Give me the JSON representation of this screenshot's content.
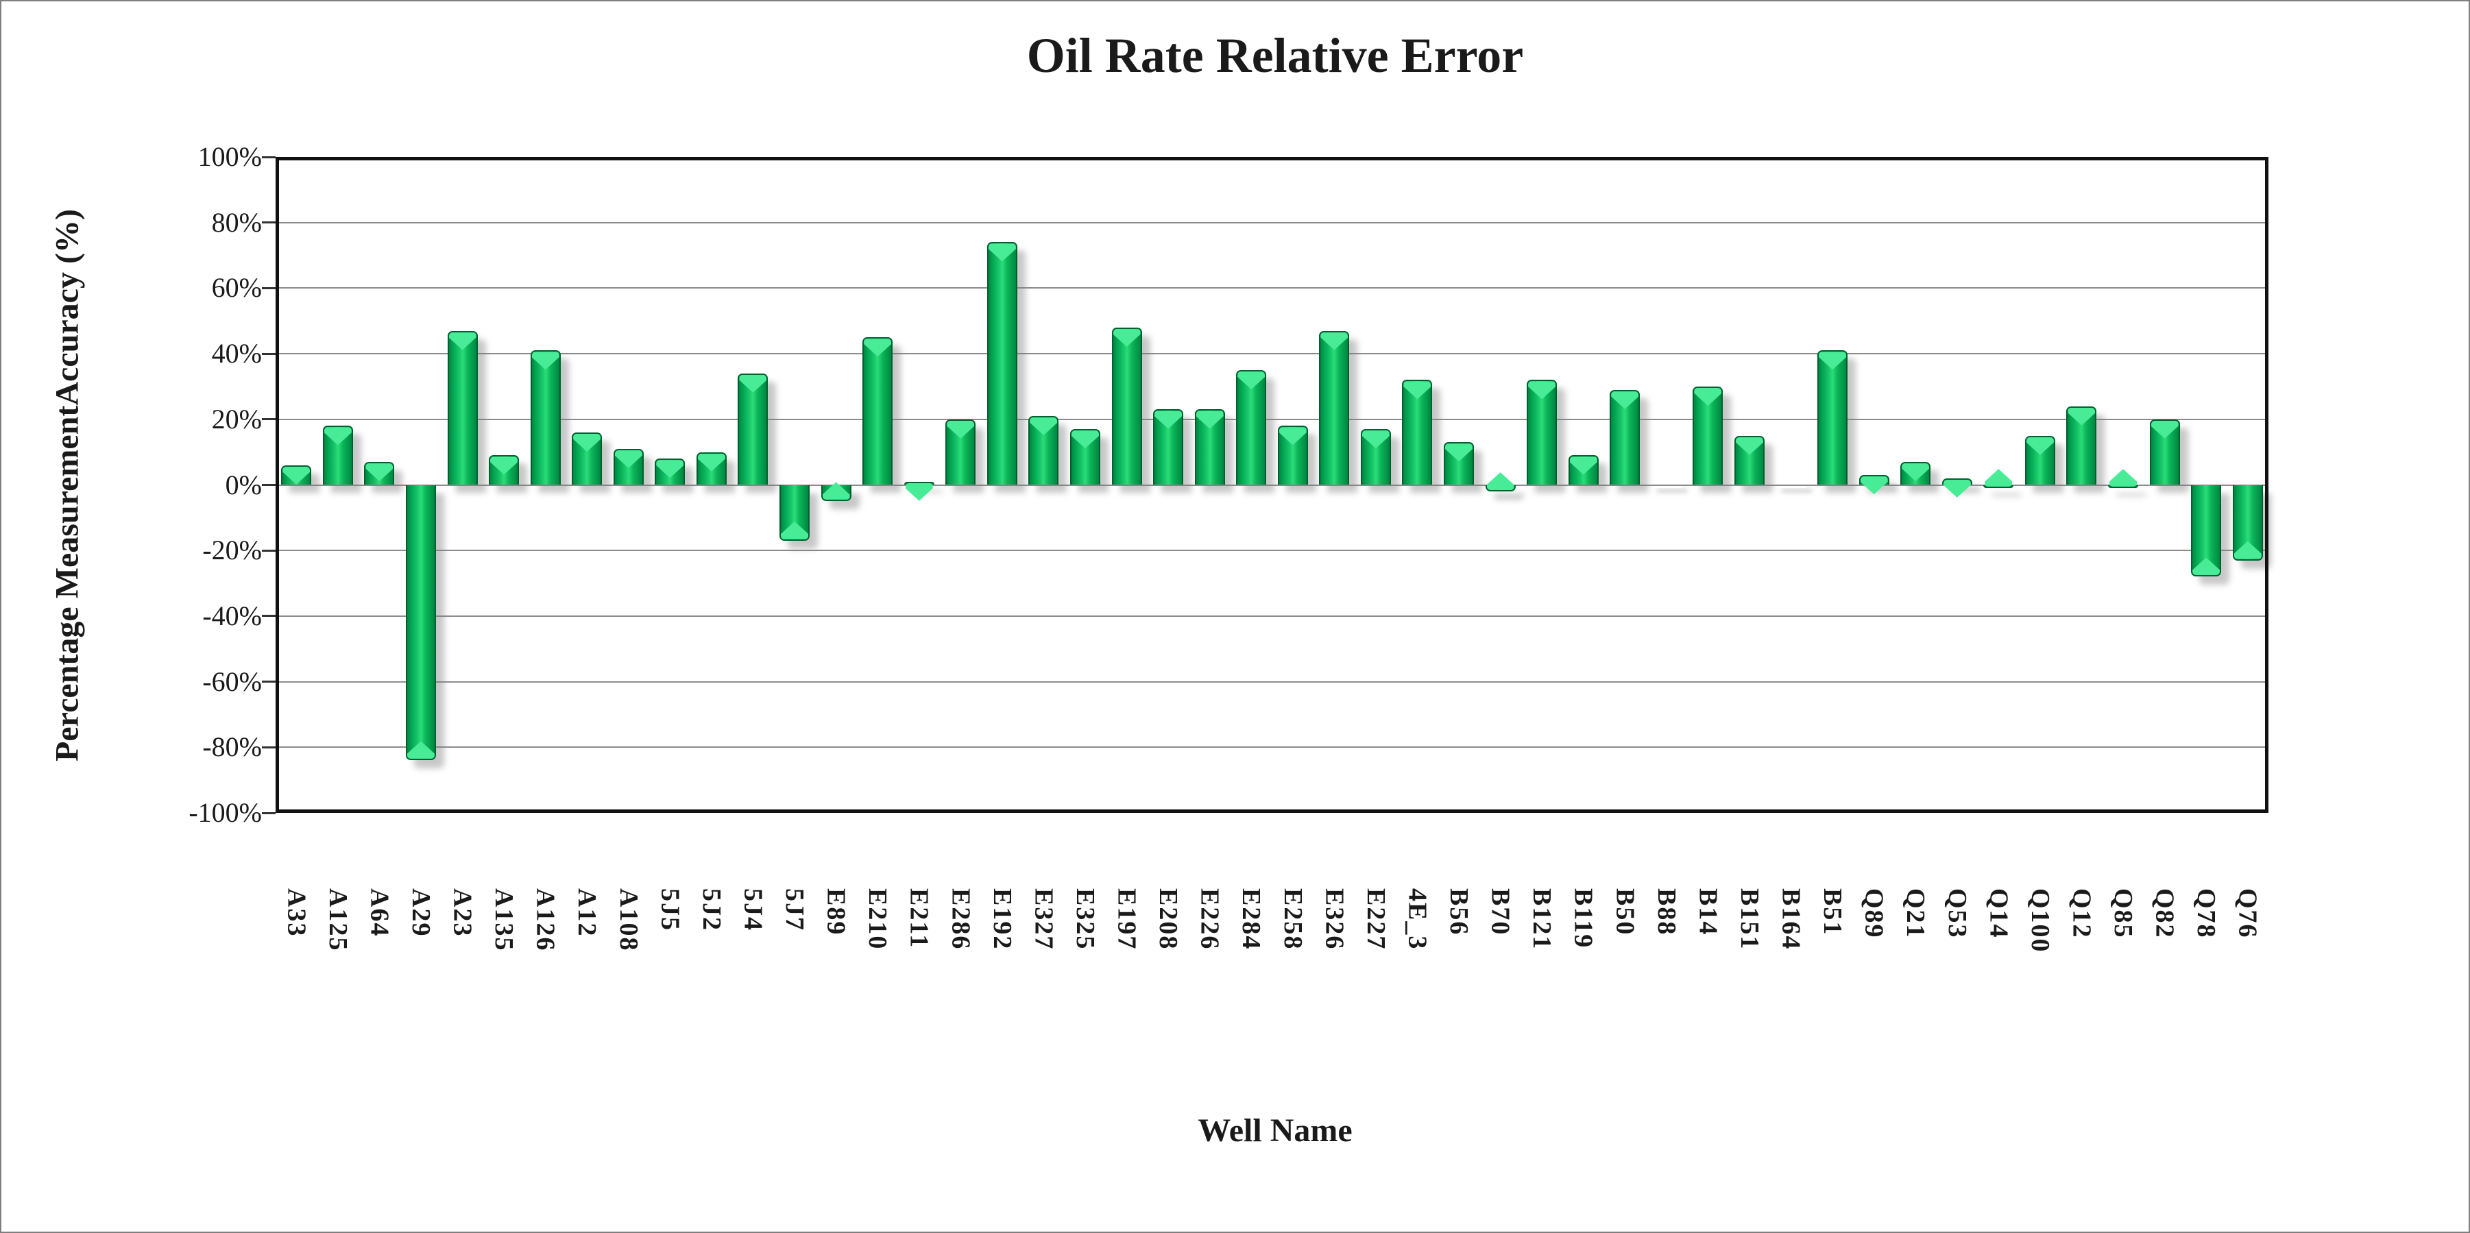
{
  "chart_data": {
    "type": "bar",
    "title": "Oil Rate Relative Error",
    "xlabel": "Well Name",
    "ylabel": "Percentage MeasurementAccuracy (%)",
    "legend": "none",
    "grid": "horizontal-20pct",
    "ylim": [
      -100,
      100
    ],
    "y_ticks": [
      {
        "value": 100,
        "label": "100%"
      },
      {
        "value": 80,
        "label": "80%"
      },
      {
        "value": 60,
        "label": "60%"
      },
      {
        "value": 40,
        "label": "40%"
      },
      {
        "value": 20,
        "label": "20%"
      },
      {
        "value": 0,
        "label": "0%"
      },
      {
        "value": -20,
        "label": "-20%"
      },
      {
        "value": -40,
        "label": "-40%"
      },
      {
        "value": -60,
        "label": "-60%"
      },
      {
        "value": -80,
        "label": "-80%"
      },
      {
        "value": -100,
        "label": "-100%"
      }
    ],
    "categories": [
      "A33",
      "A125",
      "A64",
      "A29",
      "A23",
      "A135",
      "A126",
      "A12",
      "A108",
      "5J5",
      "5J2",
      "5J4",
      "5J7",
      "E89",
      "E210",
      "E211",
      "E286",
      "E192",
      "E327",
      "E325",
      "E197",
      "E208",
      "E226",
      "E284",
      "E258",
      "E326",
      "E227",
      "4E_3",
      "B56",
      "B70",
      "B121",
      "B119",
      "B50",
      "B88",
      "B14",
      "B151",
      "B164",
      "B51",
      "Q89",
      "Q21",
      "Q53",
      "Q14",
      "Q100",
      "Q12",
      "Q85",
      "Q82",
      "Q78",
      "Q76"
    ],
    "values": [
      6,
      18,
      7,
      -84,
      47,
      9,
      41,
      16,
      11,
      8,
      10,
      34,
      -17,
      -5,
      45,
      1,
      20,
      74,
      21,
      17,
      48,
      23,
      23,
      35,
      18,
      47,
      17,
      32,
      13,
      -2,
      32,
      9,
      29,
      0,
      30,
      15,
      0,
      41,
      3,
      7,
      2,
      -1,
      15,
      24,
      -1,
      20,
      -28,
      -23
    ],
    "bar_color": "#0BB558",
    "bar_color_dark": "#008742",
    "bar_highlight_color": "#49EC96",
    "bar_edge_color": "#00602F",
    "gridline_color": "#8C8C8C",
    "axis_color": "#111111",
    "background_color": "#FFFFFF"
  }
}
